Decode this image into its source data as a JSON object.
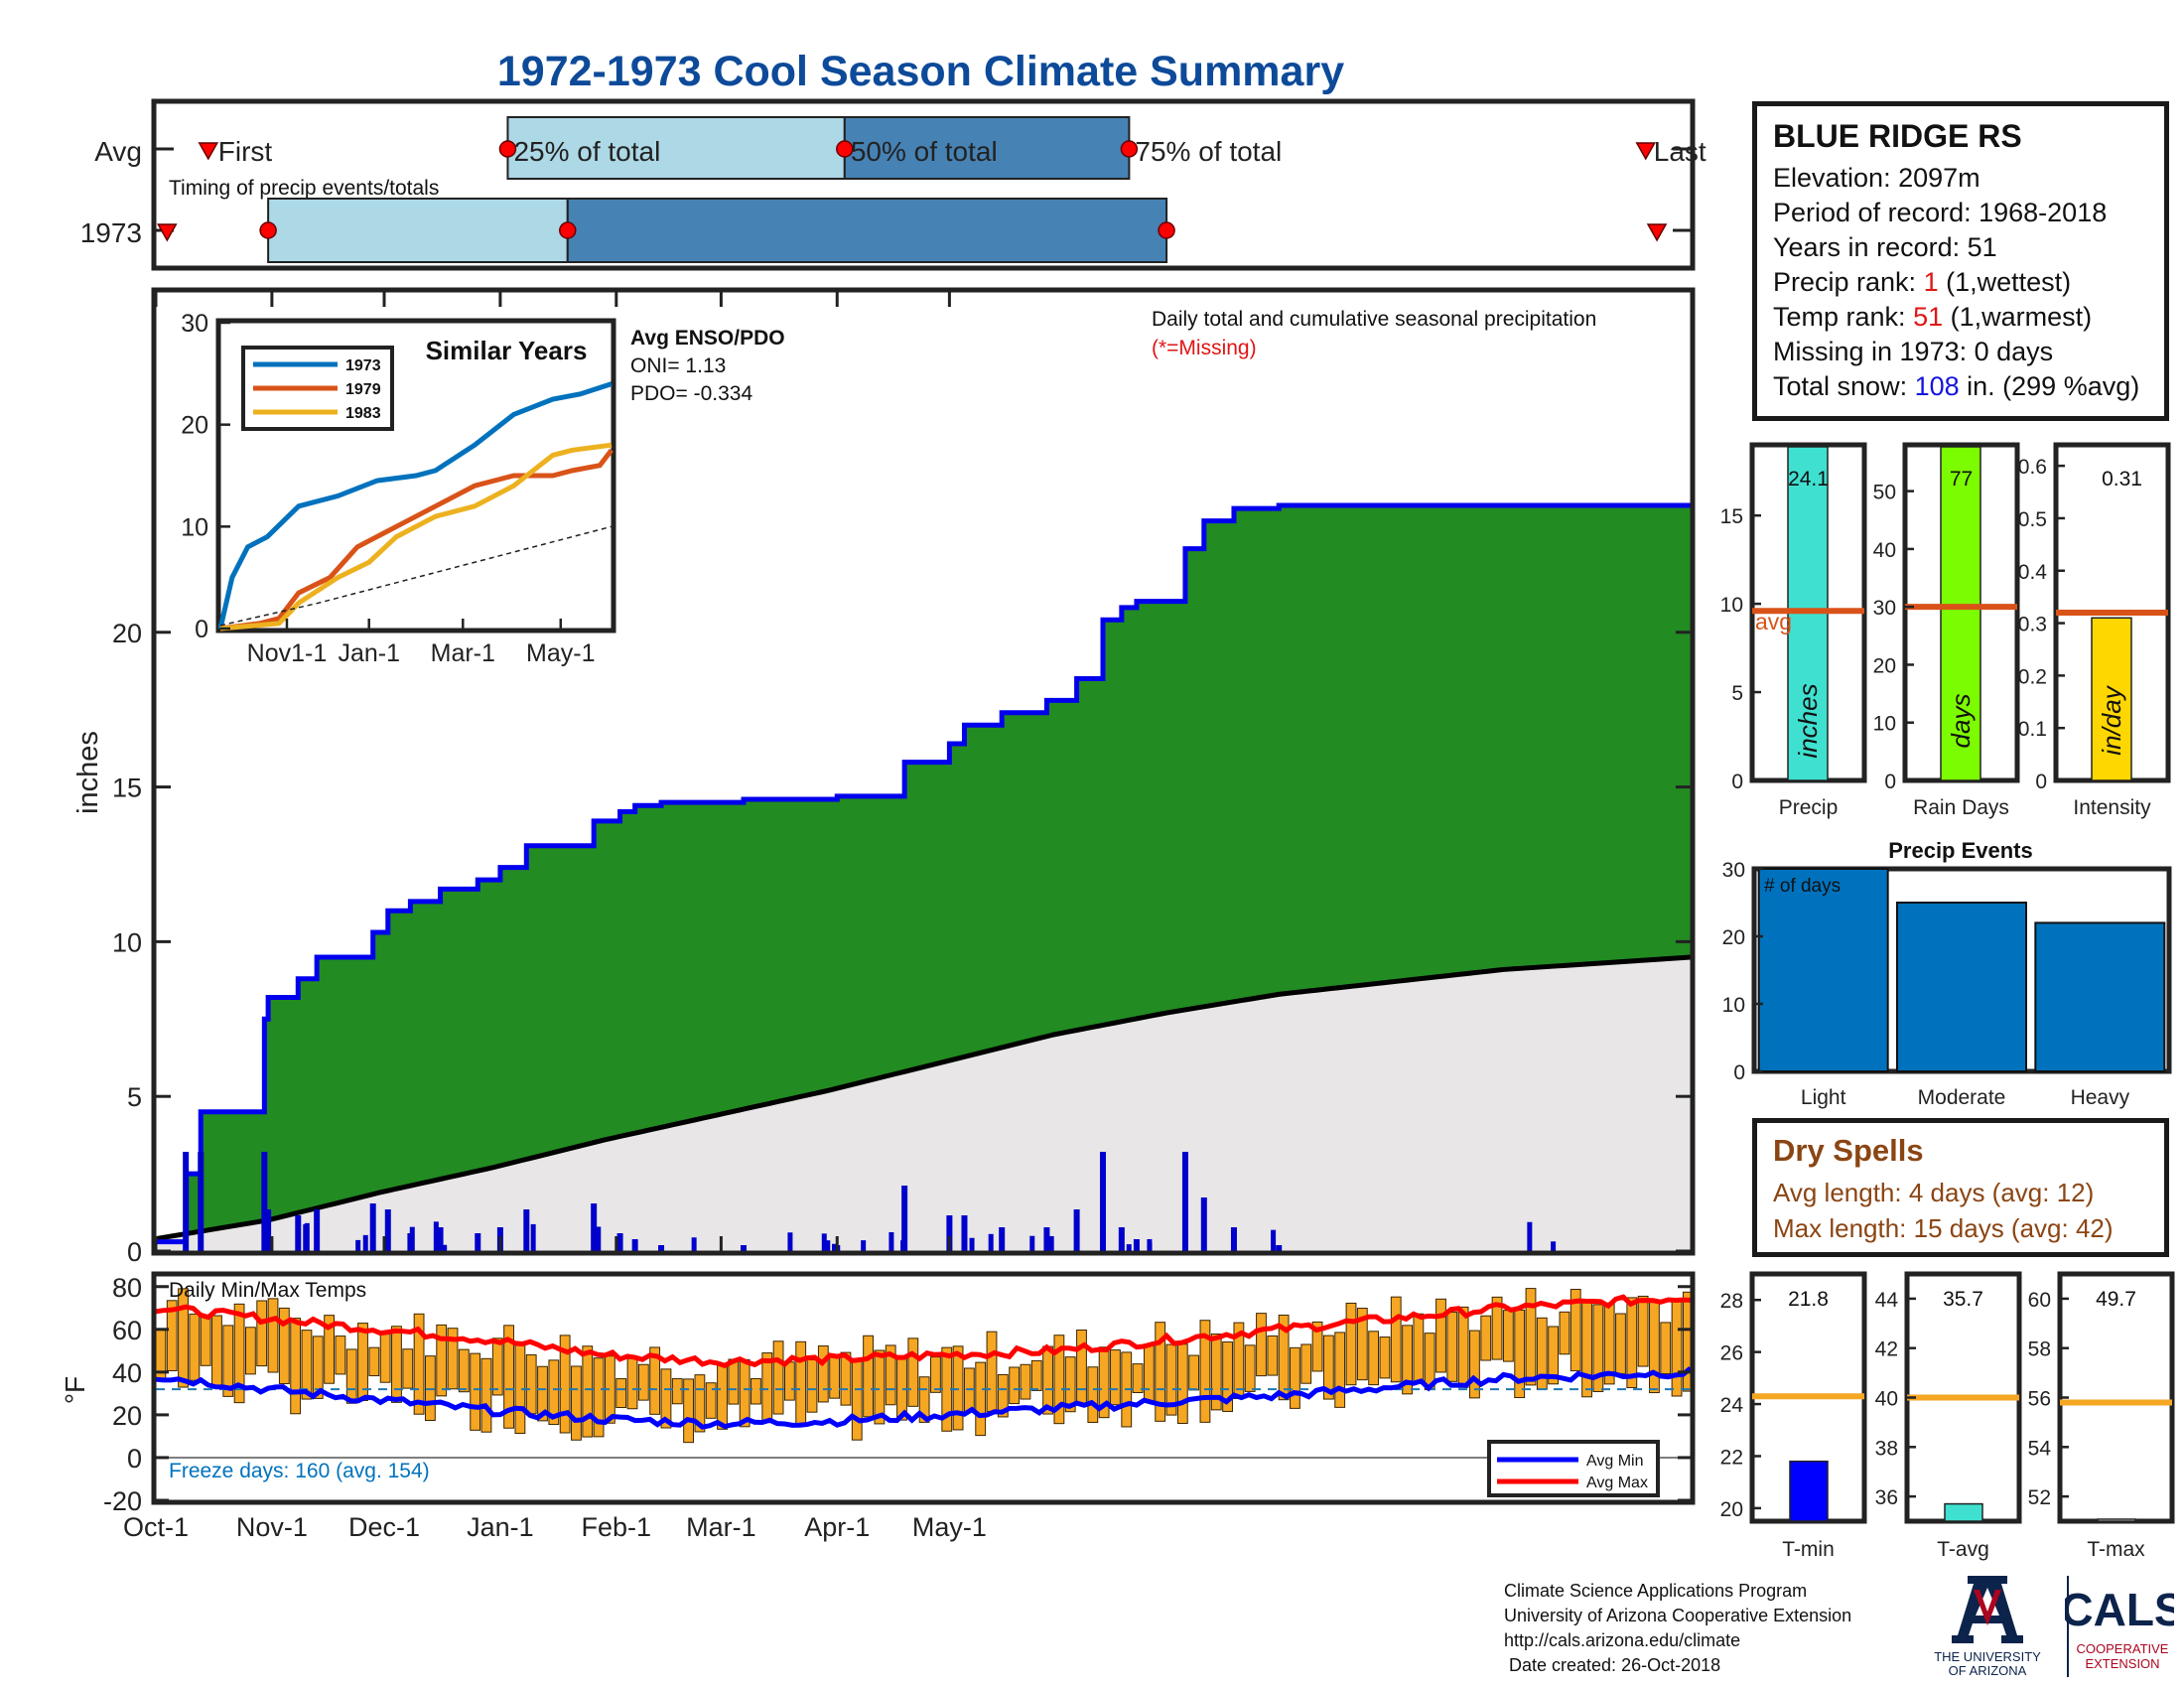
{
  "title": "1972-1973 Cool Season Climate Summary",
  "station": {
    "name": "BLUE RIDGE RS",
    "elevation": "Elevation: 2097m",
    "period": "Period of record: 1968-2018",
    "years": "Years in record: 51",
    "precip_rank_label": "Precip rank: ",
    "precip_rank_value": "1",
    "precip_rank_note": " (1,wettest)",
    "temp_rank_label": "Temp rank: ",
    "temp_rank_value": "51",
    "temp_rank_note": " (1,warmest)",
    "missing": "Missing in 1973: 0 days",
    "snow_label": "Total snow: ",
    "snow_value": "108",
    "snow_note": " in. (299 %avg)"
  },
  "timing": {
    "row_labels": [
      "Avg",
      "1973"
    ],
    "caption": "Timing of precip events/totals",
    "avg_markers": {
      "first": "First",
      "p25": "25% of total",
      "p50": "50% of total",
      "p75": "75% of total",
      "last": "Last"
    },
    "avg_day": {
      "first": 14,
      "p25": 94,
      "p50": 184,
      "p75": 260,
      "last": 398
    },
    "y1973_day": {
      "first": 3,
      "p25": 30,
      "p50": 110,
      "p75": 270,
      "last": 401
    },
    "colors": {
      "light": "#add8e6",
      "dark": "#4682b4",
      "marker": "#ff0000"
    }
  },
  "main_chart": {
    "ylabel": "inches",
    "y_ticks": [
      "0",
      "5",
      "10",
      "15",
      "20"
    ],
    "x_ticks": [
      "Oct-1",
      "Nov-1",
      "Dec-1",
      "Jan-1",
      "Feb-1",
      "Mar-1",
      "Apr-1",
      "May-1"
    ],
    "legend_text": "Daily total and cumulative seasonal precipitation",
    "missing_note": "(*=Missing)",
    "enso_title": "Avg ENSO/PDO",
    "oni": "ONI= 1.13",
    "pdo": "PDO= -0.334",
    "colors": {
      "season": "#228b22",
      "avg": "#e8e6e6",
      "line": "#0000ee",
      "avgline": "#000000"
    }
  },
  "similar_years": {
    "title": "Similar Years",
    "y_ticks": [
      "0",
      "10",
      "20",
      "30"
    ],
    "x_ticks": [
      "Nov1-1",
      "Jan-1",
      "Mar-1",
      "May-1"
    ],
    "legend": [
      {
        "name": "1973",
        "color": "#0072bd"
      },
      {
        "name": "1979",
        "color": "#d95319"
      },
      {
        "name": "1983",
        "color": "#edb120"
      }
    ]
  },
  "temp_chart": {
    "ylabel": "°F",
    "title": "Daily Min/Max Temps",
    "y_ticks": [
      "80",
      "60",
      "40",
      "20",
      "0",
      "-20"
    ],
    "freeze_text": "Freeze days: 160 (avg. 154)",
    "legend": [
      {
        "name": "Avg Min",
        "color": "#0000ff"
      },
      {
        "name": "Avg Max",
        "color": "#ff0000"
      }
    ]
  },
  "precip_bars": [
    {
      "label": "Precip",
      "value": "24.1",
      "unit": "inches",
      "avg_label": "avg",
      "ticks": [
        "0",
        "5",
        "10",
        "15"
      ],
      "color": "#40e0d0"
    },
    {
      "label": "Rain Days",
      "value": "77",
      "unit": "days",
      "ticks": [
        "0",
        "10",
        "20",
        "30",
        "40",
        "50"
      ],
      "color": "#7cfc00"
    },
    {
      "label": "Intensity",
      "value": "0.31",
      "unit": "in/day",
      "ticks": [
        "0",
        "0.1",
        "0.2",
        "0.3",
        "0.4",
        "0.5",
        "0.6"
      ],
      "color": "#ffd700"
    }
  ],
  "precip_events": {
    "title": "Precip Events",
    "note": "# of days",
    "y_ticks": [
      "0",
      "10",
      "20",
      "30"
    ],
    "color": "#0072bd"
  },
  "dry_spells": {
    "title": "Dry Spells",
    "avg": "Avg length: 4 days (avg: 12)",
    "max": "Max length: 15 days (avg: 42)"
  },
  "temp_bars": [
    {
      "label": "T-min",
      "value": "21.8",
      "ticks": [
        "20",
        "22",
        "24",
        "26",
        "28"
      ],
      "color": "#0000ff"
    },
    {
      "label": "T-avg",
      "value": "35.7",
      "ticks": [
        "36",
        "38",
        "40",
        "42",
        "44"
      ],
      "color": "#40e0d0"
    },
    {
      "label": "T-max",
      "value": "49.7",
      "ticks": [
        "52",
        "54",
        "56",
        "58",
        "60"
      ],
      "color": "#ffffff"
    }
  ],
  "credits": {
    "line1": "Climate Science Applications Program",
    "line2": "University of Arizona Cooperative Extension",
    "line3": "http://cals.arizona.edu/climate",
    "line4": " Date created: 26-Oct-2018",
    "ua_text1": "THE UNIVERSITY",
    "ua_text2": "OF ARIZONA",
    "cals": "CALS",
    "cals_sub1": "COOPERATIVE",
    "cals_sub2": "EXTENSION"
  },
  "chart_data": [
    {
      "type": "area",
      "title": "Daily total and cumulative seasonal precipitation",
      "ylabel": "inches",
      "ylim": [
        0,
        31
      ],
      "x_range": [
        "Oct-1",
        "Jun-1"
      ],
      "series": [
        {
          "x_day": [
            0,
            8,
            12,
            15,
            26,
            29,
            30,
            36,
            38,
            43,
            55,
            58,
            62,
            68,
            76,
            86,
            92,
            99,
            106,
            117,
            124,
            128,
            135,
            157,
            170,
            182,
            200,
            212,
            216,
            226,
            238,
            246,
            253,
            258,
            262,
            275,
            280,
            288,
            300,
            320,
            336,
            400,
            410
          ],
          "y": [
            0.3,
            2.5,
            4.5,
            4.5,
            4.5,
            7.5,
            8.2,
            8.2,
            8.8,
            9.5,
            9.5,
            10.3,
            11.0,
            11.3,
            11.7,
            12.0,
            12.4,
            13.1,
            13.1,
            13.9,
            14.2,
            14.4,
            14.5,
            14.6,
            14.6,
            14.7,
            15.8,
            16.4,
            17.0,
            17.4,
            17.8,
            18.5,
            20.4,
            20.8,
            21.0,
            22.7,
            23.6,
            24.0,
            24.1,
            24.1,
            24.1,
            24.1,
            24.1
          ]
        },
        {
          "x_day": [
            0,
            30,
            60,
            90,
            120,
            150,
            180,
            210,
            240,
            270,
            300,
            330,
            360,
            410
          ],
          "y": [
            0.4,
            1.0,
            1.9,
            2.7,
            3.6,
            4.4,
            5.2,
            6.1,
            7.0,
            7.7,
            8.3,
            8.7,
            9.1,
            9.5
          ]
        }
      ]
    },
    {
      "type": "line",
      "title": "Similar Years",
      "ylim": [
        0,
        30
      ],
      "x_ticks": [
        "Nov1-1",
        "Jan-1",
        "Mar-1",
        "May-1"
      ],
      "series": [
        {
          "name": "1973",
          "x_frac": [
            0,
            0.03,
            0.07,
            0.12,
            0.2,
            0.3,
            0.4,
            0.5,
            0.55,
            0.65,
            0.75,
            0.85,
            0.92,
            1.0
          ],
          "y": [
            0,
            5,
            8,
            9,
            12,
            13,
            14.5,
            15,
            15.5,
            18,
            21,
            22.5,
            23,
            24
          ]
        },
        {
          "name": "1979",
          "x_frac": [
            0,
            0.1,
            0.15,
            0.2,
            0.28,
            0.35,
            0.45,
            0.55,
            0.65,
            0.75,
            0.85,
            0.9,
            0.97,
            1.0
          ],
          "y": [
            0,
            0.5,
            1,
            3.5,
            5,
            8,
            10,
            12,
            14,
            15,
            15,
            15.5,
            16,
            17.5
          ]
        },
        {
          "name": "1983",
          "x_frac": [
            0,
            0.15,
            0.2,
            0.3,
            0.38,
            0.45,
            0.55,
            0.65,
            0.75,
            0.85,
            0.9,
            1.0
          ],
          "y": [
            0,
            0.5,
            2.5,
            5,
            6.5,
            9,
            11,
            12,
            14,
            17,
            17.5,
            18
          ]
        },
        {
          "name": "Avg",
          "x_frac": [
            0,
            0.25,
            0.5,
            0.75,
            1.0
          ],
          "y": [
            0.3,
            2.5,
            5,
            7.5,
            10
          ]
        }
      ]
    },
    {
      "type": "bar",
      "title": "Precip Events",
      "categories": [
        "Light",
        "Moderate",
        "Heavy"
      ],
      "values": [
        30,
        25,
        22
      ],
      "ylim": [
        0,
        30
      ]
    },
    {
      "type": "bar",
      "categories": [
        "Precip",
        "Rain Days",
        "Intensity"
      ],
      "values": [
        24.1,
        77,
        0.31
      ],
      "averages": [
        9.6,
        30,
        0.32
      ],
      "ylims": [
        [
          0,
          19
        ],
        [
          0,
          58
        ],
        [
          0,
          0.64
        ]
      ]
    },
    {
      "type": "bar",
      "categories": [
        "T-min",
        "T-avg",
        "T-max"
      ],
      "values": [
        21.8,
        35.7,
        49.7
      ],
      "averages": [
        24.3,
        40.0,
        55.8
      ],
      "ylims": [
        [
          19.5,
          29
        ],
        [
          35,
          45
        ],
        [
          51,
          61
        ]
      ]
    },
    {
      "type": "line",
      "title": "Daily Min/Max Temps",
      "ylim": [
        -20,
        85
      ],
      "series": [
        {
          "name": "Avg Max",
          "x_day": [
            0,
            30,
            60,
            90,
            120,
            150,
            180,
            210,
            240,
            270,
            300,
            330,
            360,
            410
          ],
          "y": [
            70,
            65,
            60,
            55,
            48,
            45,
            46,
            48,
            50,
            55,
            60,
            65,
            70,
            75
          ]
        },
        {
          "name": "Avg Min",
          "x_day": [
            0,
            30,
            60,
            90,
            120,
            150,
            180,
            210,
            240,
            270,
            300,
            330,
            360,
            410
          ],
          "y": [
            38,
            32,
            27,
            22,
            18,
            16,
            17,
            20,
            23,
            26,
            29,
            33,
            37,
            40
          ]
        }
      ]
    }
  ]
}
